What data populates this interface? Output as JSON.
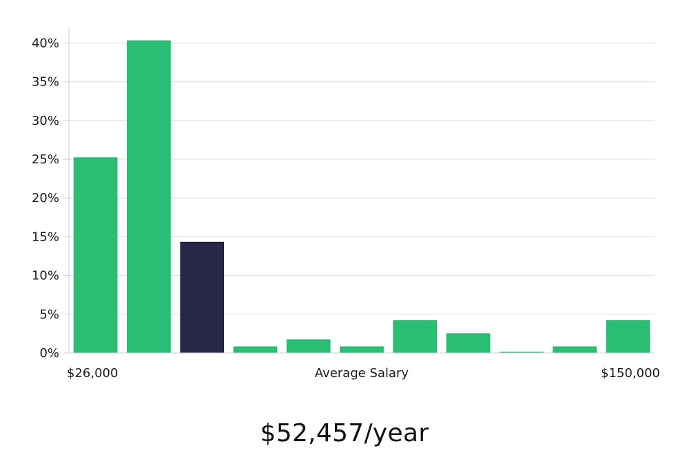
{
  "headline": "$52,457/year",
  "colors": {
    "bar": "#2bbf76",
    "highlight": "#282747",
    "grid": "#dcdcdc",
    "axis": "#cfcfcf",
    "text": "#1a1a1a"
  },
  "chart_data": {
    "type": "bar",
    "xlabel": "Average Salary",
    "x_min_label": "$26,000",
    "x_max_label": "$150,000",
    "ylabel": "",
    "ylim": [
      0,
      42
    ],
    "yticks": [
      0,
      5,
      10,
      15,
      20,
      25,
      30,
      35,
      40
    ],
    "ytick_suffix": "%",
    "grid": true,
    "highlight_index": 2,
    "values": [
      25.2,
      40.3,
      14.3,
      0.8,
      1.7,
      0.8,
      4.2,
      2.5,
      0.1,
      0.8,
      4.2
    ]
  }
}
